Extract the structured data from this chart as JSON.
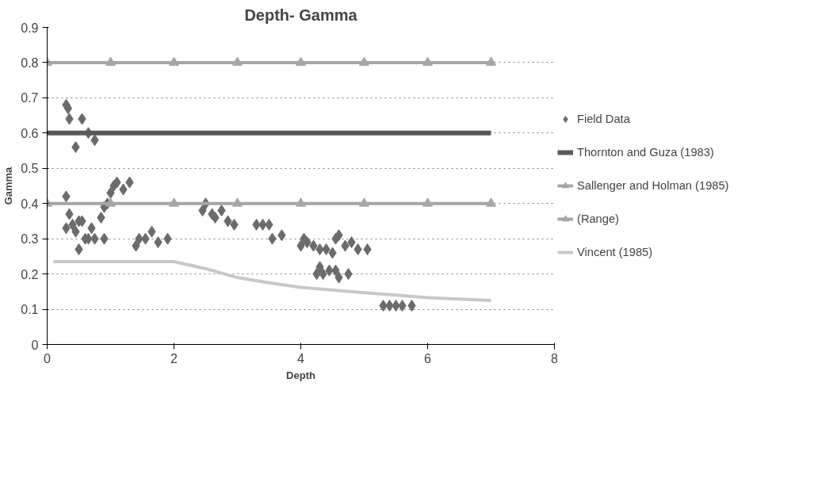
{
  "chart_data": {
    "type": "scatter",
    "title": "Depth- Gamma",
    "xlabel": "Depth",
    "ylabel": "Gamma",
    "xlim": [
      0,
      8
    ],
    "xticks": [
      0,
      2,
      4,
      6,
      8
    ],
    "ylim": [
      0,
      0.9
    ],
    "yticks": [
      0,
      0.1,
      0.2,
      0.3,
      0.4,
      0.5,
      0.6,
      0.7,
      0.8,
      0.9
    ],
    "grid": "y",
    "legend": "right",
    "series": [
      {
        "name": "Field Data",
        "marker": "diamond",
        "color": "#6b6b6b",
        "x": [
          0.3,
          0.33,
          0.35,
          0.45,
          0.55,
          0.65,
          0.75,
          0.3,
          0.35,
          0.3,
          0.4,
          0.45,
          0.5,
          0.55,
          0.5,
          0.6,
          0.65,
          0.7,
          0.75,
          0.9,
          0.85,
          0.9,
          0.95,
          1.0,
          1.05,
          1.1,
          1.2,
          1.3,
          1.4,
          1.45,
          1.55,
          1.65,
          1.75,
          1.9,
          2.45,
          2.5,
          2.6,
          2.65,
          2.75,
          2.85,
          2.95,
          3.3,
          3.4,
          3.5,
          3.55,
          3.7,
          4.0,
          4.05,
          4.1,
          4.2,
          4.3,
          4.4,
          4.5,
          4.55,
          4.6,
          4.7,
          4.8,
          4.9,
          5.05,
          4.25,
          4.3,
          4.35,
          4.45,
          4.55,
          4.6,
          4.75,
          5.3,
          5.4,
          5.5,
          5.6,
          5.75
        ],
        "values": [
          0.68,
          0.67,
          0.64,
          0.56,
          0.64,
          0.6,
          0.58,
          0.42,
          0.37,
          0.33,
          0.34,
          0.32,
          0.35,
          0.35,
          0.27,
          0.3,
          0.3,
          0.33,
          0.3,
          0.3,
          0.36,
          0.39,
          0.4,
          0.43,
          0.45,
          0.46,
          0.44,
          0.46,
          0.28,
          0.3,
          0.3,
          0.32,
          0.29,
          0.3,
          0.38,
          0.4,
          0.37,
          0.36,
          0.38,
          0.35,
          0.34,
          0.34,
          0.34,
          0.34,
          0.3,
          0.31,
          0.28,
          0.3,
          0.29,
          0.28,
          0.27,
          0.27,
          0.26,
          0.3,
          0.31,
          0.28,
          0.29,
          0.27,
          0.27,
          0.2,
          0.22,
          0.2,
          0.21,
          0.21,
          0.19,
          0.2,
          0.11,
          0.11,
          0.11,
          0.11,
          0.11
        ]
      },
      {
        "name": "Thornton and Guza (1983)",
        "type": "line",
        "marker": "none",
        "color": "#595959",
        "x": [
          0,
          7
        ],
        "values": [
          0.6,
          0.6
        ]
      },
      {
        "name": "Sallenger and Holman (1985)",
        "type": "line",
        "marker": "triangle",
        "color": "#a6a6a6",
        "x": [
          0,
          1,
          2,
          3,
          4,
          5,
          6,
          7
        ],
        "values": [
          0.4,
          0.4,
          0.4,
          0.4,
          0.4,
          0.4,
          0.4,
          0.4
        ]
      },
      {
        "name": "(Range)",
        "type": "line",
        "marker": "triangle",
        "color": "#a6a6a6",
        "x": [
          0,
          1,
          2,
          3,
          4,
          5,
          6,
          7
        ],
        "values": [
          0.8,
          0.8,
          0.8,
          0.8,
          0.8,
          0.8,
          0.8,
          0.8
        ]
      },
      {
        "name": "Vincent (1985)",
        "type": "line",
        "marker": "none",
        "color": "#c8c8c8",
        "x": [
          0.1,
          2,
          2.5,
          3,
          3.5,
          4,
          5,
          6,
          7
        ],
        "values": [
          0.235,
          0.235,
          0.215,
          0.19,
          0.175,
          0.162,
          0.147,
          0.133,
          0.125
        ]
      }
    ]
  }
}
